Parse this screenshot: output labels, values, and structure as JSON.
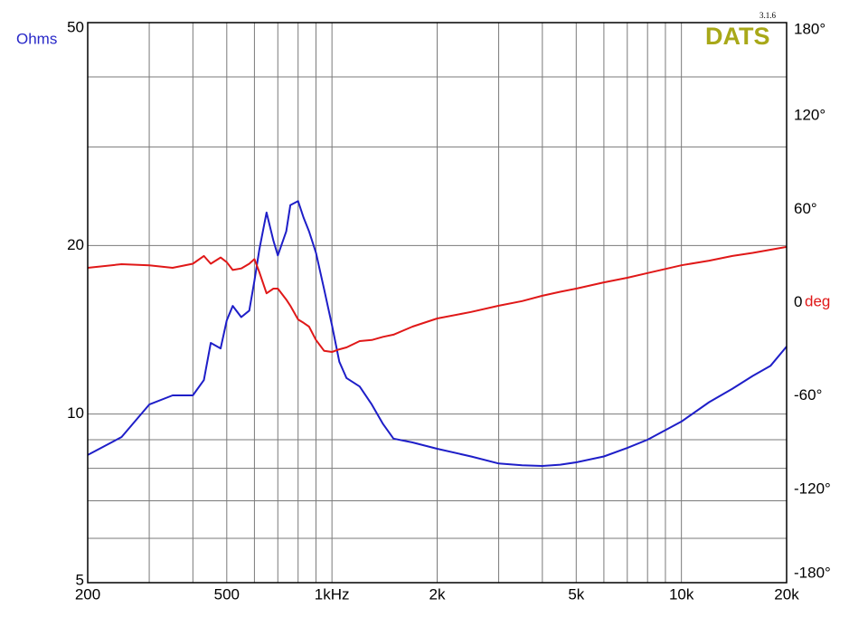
{
  "chart_data": {
    "type": "line",
    "y_label": "Ohms",
    "y2_label": "deg",
    "watermark": "DATS",
    "version": "3.1.6",
    "xscale": "log",
    "yscale": "log",
    "grid": true,
    "xlim": [
      200,
      20000
    ],
    "xticks": [
      200,
      500,
      {
        "value": 1000,
        "label": "1kHz"
      },
      {
        "value": 2000,
        "label": "2k"
      },
      {
        "value": 5000,
        "label": "5k"
      },
      {
        "value": 10000,
        "label": "10k"
      },
      {
        "value": 20000,
        "label": "20k"
      }
    ],
    "xminor": [
      300,
      400,
      600,
      700,
      800,
      900,
      3000,
      4000,
      6000,
      7000,
      8000,
      9000
    ],
    "ylim": [
      5,
      50
    ],
    "yticks": [
      5,
      10,
      20,
      50
    ],
    "yminor": [
      6,
      7,
      8,
      9,
      30,
      40
    ],
    "y2lim": [
      -180,
      180
    ],
    "y2ticks": [
      {
        "value": -180,
        "label": "-180°"
      },
      {
        "value": -120,
        "label": "-120°"
      },
      {
        "value": -60,
        "label": "-60°"
      },
      0,
      {
        "value": 60,
        "label": "60°"
      },
      {
        "value": 120,
        "label": "120°"
      },
      {
        "value": 180,
        "label": "180°"
      }
    ],
    "x": [
      200,
      250,
      300,
      350,
      400,
      430,
      450,
      480,
      500,
      520,
      550,
      580,
      600,
      620,
      650,
      680,
      700,
      740,
      760,
      800,
      830,
      860,
      900,
      950,
      1000,
      1050,
      1100,
      1200,
      1300,
      1400,
      1500,
      1700,
      2000,
      2500,
      3000,
      3500,
      4000,
      4500,
      5000,
      6000,
      7000,
      8000,
      10000,
      12000,
      14000,
      16000,
      18000,
      20000
    ],
    "series": [
      {
        "color": "#1e1ec8",
        "values": [
          8.45,
          9.1,
          10.4,
          10.8,
          10.8,
          11.5,
          13.4,
          13.1,
          14.7,
          15.6,
          14.9,
          15.3,
          17.3,
          19.7,
          22.9,
          20.4,
          19.2,
          21.2,
          23.6,
          24.0,
          22.4,
          21.2,
          19.4,
          16.7,
          14.4,
          12.4,
          11.6,
          11.2,
          10.4,
          9.6,
          9.04,
          8.9,
          8.67,
          8.4,
          8.16,
          8.1,
          8.08,
          8.12,
          8.2,
          8.4,
          8.7,
          9.0,
          9.7,
          10.5,
          11.1,
          11.7,
          12.2,
          13.2
        ]
      },
      {
        "color": "#e01818",
        "axis": "y2",
        "values": [
          22.4,
          24.7,
          24,
          22.4,
          25,
          30,
          25,
          29,
          26,
          21,
          22,
          25,
          28,
          19.5,
          6,
          9,
          9,
          2,
          -2,
          -10.8,
          -13,
          -15.4,
          -24,
          -31,
          -31.7,
          -30,
          -28.8,
          -24.7,
          -24,
          -22,
          -20.6,
          -15.4,
          -10.2,
          -6,
          -2,
          1,
          4.4,
          7,
          9,
          13,
          16,
          19,
          24,
          27,
          30,
          32,
          34,
          35.8
        ]
      }
    ]
  }
}
